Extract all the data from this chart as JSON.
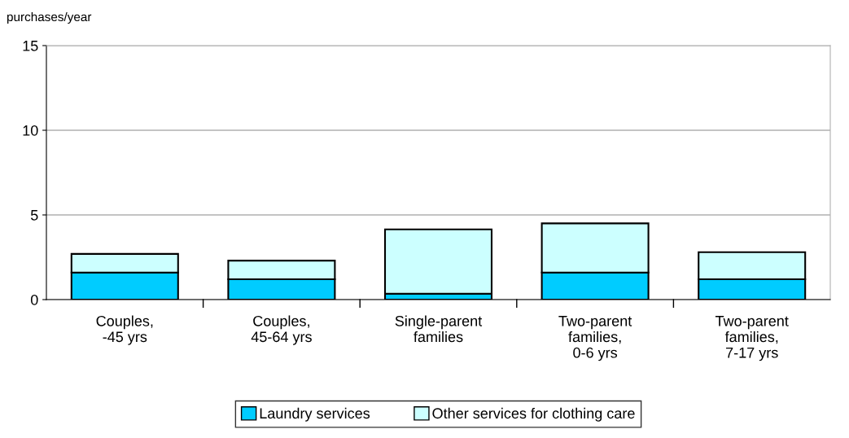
{
  "chart_data": {
    "type": "bar",
    "stacked": true,
    "ylabel": "purchases/year",
    "categories": [
      "Couples,\n-45 yrs",
      "Couples,\n45-64 yrs",
      "Single-parent\nfamilies",
      "Two-parent\nfamilies,\n0-6 yrs",
      "Two-parent\nfamilies,\n7-17 yrs"
    ],
    "series": [
      {
        "name": "Laundry services",
        "color": "#00ccff",
        "values": [
          1.6,
          1.2,
          0.35,
          1.6,
          1.2
        ]
      },
      {
        "name": "Other services for clothing care",
        "color": "#ccffff",
        "values": [
          1.1,
          1.1,
          3.8,
          2.9,
          1.6
        ]
      }
    ],
    "ylim": [
      0,
      15
    ],
    "yticks": [
      0,
      5,
      10,
      15
    ],
    "grid": "y",
    "legend": "bottom"
  }
}
